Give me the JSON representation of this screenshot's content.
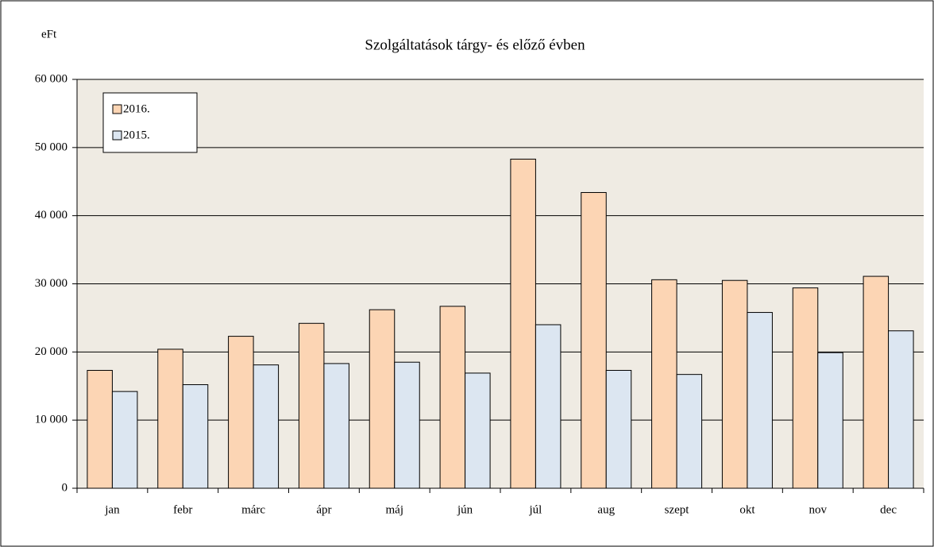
{
  "chart_data": {
    "type": "bar",
    "title": "Szolgáltatások  tárgy-  és előző évben",
    "y_label": "eFt",
    "categories": [
      "jan",
      "febr",
      "márc",
      "ápr",
      "máj",
      "jún",
      "júl",
      "aug",
      "szept",
      "okt",
      "nov",
      "dec"
    ],
    "series": [
      {
        "name": "2016.",
        "color": "#fcd5b4",
        "values": [
          17300,
          20400,
          22300,
          24200,
          26200,
          26700,
          48300,
          43400,
          30600,
          30500,
          29400,
          31100
        ]
      },
      {
        "name": "2015.",
        "color": "#dce6f1",
        "values": [
          14200,
          15200,
          18100,
          18300,
          18500,
          16900,
          24000,
          17300,
          16700,
          25800,
          19900,
          23100
        ]
      }
    ],
    "ylim": [
      0,
      60000
    ],
    "yticks": [
      0,
      {
        "value": 10000,
        "label": "10 000"
      },
      {
        "value": 20000,
        "label": "20 000"
      },
      {
        "value": 30000,
        "label": "30 000"
      },
      {
        "value": 40000,
        "label": "40 000"
      },
      {
        "value": 50000,
        "label": "50 000"
      },
      {
        "value": 60000,
        "label": "60 000"
      }
    ],
    "grid": true,
    "legend": "top-left"
  }
}
